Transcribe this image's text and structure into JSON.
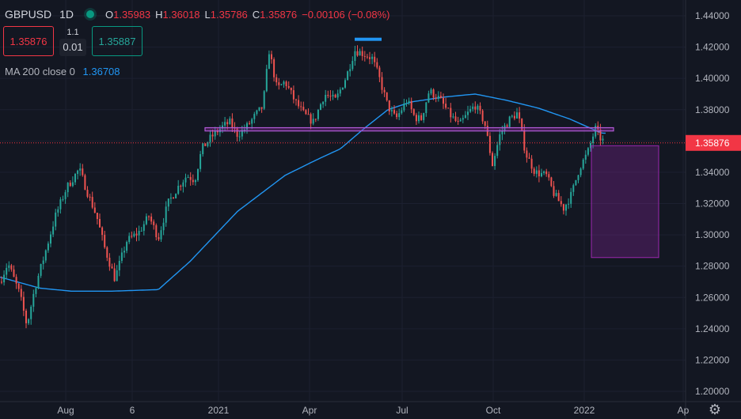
{
  "symbol": "GBPUSD",
  "timeframe": "1D",
  "ohlc": {
    "o_label": "O",
    "o": "1.35983",
    "h_label": "H",
    "h": "1.36018",
    "l_label": "L",
    "l": "1.35786",
    "c_label": "C",
    "c": "1.35876",
    "chg": "−0.00106 (−0.08%)"
  },
  "trade_panel": {
    "sell_price": "1.35876",
    "spread_top": "1.1",
    "quantity": "0.01",
    "buy_price": "1.35887"
  },
  "indicator": {
    "label": "MA 200 close 0",
    "value": "1.36708"
  },
  "current_price_tag": "1.35876",
  "colors": {
    "background": "#131722",
    "up_candle": "#26a69a",
    "down_candle": "#ef5350",
    "ma_line": "#2196f3",
    "zone": "#9c27b0",
    "resistance_marker": "#2196f3",
    "price_tag": "#f23645"
  },
  "icons": {
    "settings": "gear-icon",
    "live_status": "live-dot-icon"
  },
  "chart_data": {
    "type": "candlestick",
    "y_ticks": [
      "1.44000",
      "1.42000",
      "1.40000",
      "1.38000",
      "1.36000",
      "1.34000",
      "1.32000",
      "1.30000",
      "1.28000",
      "1.26000",
      "1.24000",
      "1.22000",
      "1.20000"
    ],
    "ylim": [
      1.195,
      1.449
    ],
    "x_ticks": [
      "Aug",
      "6",
      "2021",
      "Apr",
      "Jul",
      "Oct",
      "2022",
      "Ap"
    ],
    "close_anchors": [
      [
        0,
        1.27
      ],
      [
        10,
        1.282
      ],
      [
        25,
        1.262
      ],
      [
        34,
        1.242
      ],
      [
        44,
        1.266
      ],
      [
        55,
        1.285
      ],
      [
        70,
        1.312
      ],
      [
        84,
        1.33
      ],
      [
        100,
        1.342
      ],
      [
        112,
        1.325
      ],
      [
        122,
        1.312
      ],
      [
        132,
        1.292
      ],
      [
        145,
        1.272
      ],
      [
        160,
        1.296
      ],
      [
        176,
        1.302
      ],
      [
        188,
        1.312
      ],
      [
        200,
        1.298
      ],
      [
        212,
        1.32
      ],
      [
        224,
        1.33
      ],
      [
        236,
        1.338
      ],
      [
        246,
        1.335
      ],
      [
        255,
        1.355
      ],
      [
        266,
        1.362
      ],
      [
        278,
        1.368
      ],
      [
        290,
        1.372
      ],
      [
        300,
        1.364
      ],
      [
        310,
        1.368
      ],
      [
        322,
        1.376
      ],
      [
        332,
        1.382
      ],
      [
        340,
        1.418
      ],
      [
        350,
        1.393
      ],
      [
        360,
        1.398
      ],
      [
        372,
        1.386
      ],
      [
        384,
        1.377
      ],
      [
        396,
        1.372
      ],
      [
        410,
        1.39
      ],
      [
        424,
        1.386
      ],
      [
        438,
        1.402
      ],
      [
        448,
        1.418
      ],
      [
        458,
        1.416
      ],
      [
        470,
        1.413
      ],
      [
        478,
        1.402
      ],
      [
        490,
        1.382
      ],
      [
        500,
        1.374
      ],
      [
        514,
        1.386
      ],
      [
        524,
        1.375
      ],
      [
        532,
        1.374
      ],
      [
        542,
        1.392
      ],
      [
        555,
        1.387
      ],
      [
        568,
        1.377
      ],
      [
        580,
        1.37
      ],
      [
        590,
        1.377
      ],
      [
        600,
        1.383
      ],
      [
        612,
        1.372
      ],
      [
        622,
        1.345
      ],
      [
        632,
        1.365
      ],
      [
        644,
        1.374
      ],
      [
        654,
        1.378
      ],
      [
        664,
        1.352
      ],
      [
        676,
        1.34
      ],
      [
        690,
        1.338
      ],
      [
        700,
        1.326
      ],
      [
        712,
        1.317
      ],
      [
        722,
        1.326
      ],
      [
        732,
        1.343
      ],
      [
        742,
        1.352
      ],
      [
        752,
        1.368
      ],
      [
        758,
        1.362
      ],
      [
        764,
        1.359
      ]
    ],
    "ma200_anchors": [
      [
        0,
        1.273
      ],
      [
        50,
        1.266
      ],
      [
        90,
        1.264
      ],
      [
        140,
        1.264
      ],
      [
        200,
        1.265
      ],
      [
        240,
        1.283
      ],
      [
        300,
        1.315
      ],
      [
        360,
        1.338
      ],
      [
        400,
        1.348
      ],
      [
        430,
        1.355
      ],
      [
        460,
        1.368
      ],
      [
        490,
        1.38
      ],
      [
        520,
        1.385
      ],
      [
        560,
        1.388
      ],
      [
        600,
        1.39
      ],
      [
        640,
        1.386
      ],
      [
        680,
        1.381
      ],
      [
        720,
        1.374
      ],
      [
        760,
        1.365
      ]
    ],
    "resistance_zone": {
      "x0": 259,
      "x1": 775,
      "y0": 1.3685,
      "y1": 1.3664
    },
    "top_marker": {
      "x0": 448,
      "x1": 482,
      "y": 1.425
    },
    "target_box": {
      "x0": 747,
      "x1": 832,
      "y0": 1.357,
      "y1": 1.2855
    },
    "current_price": 1.35876
  }
}
